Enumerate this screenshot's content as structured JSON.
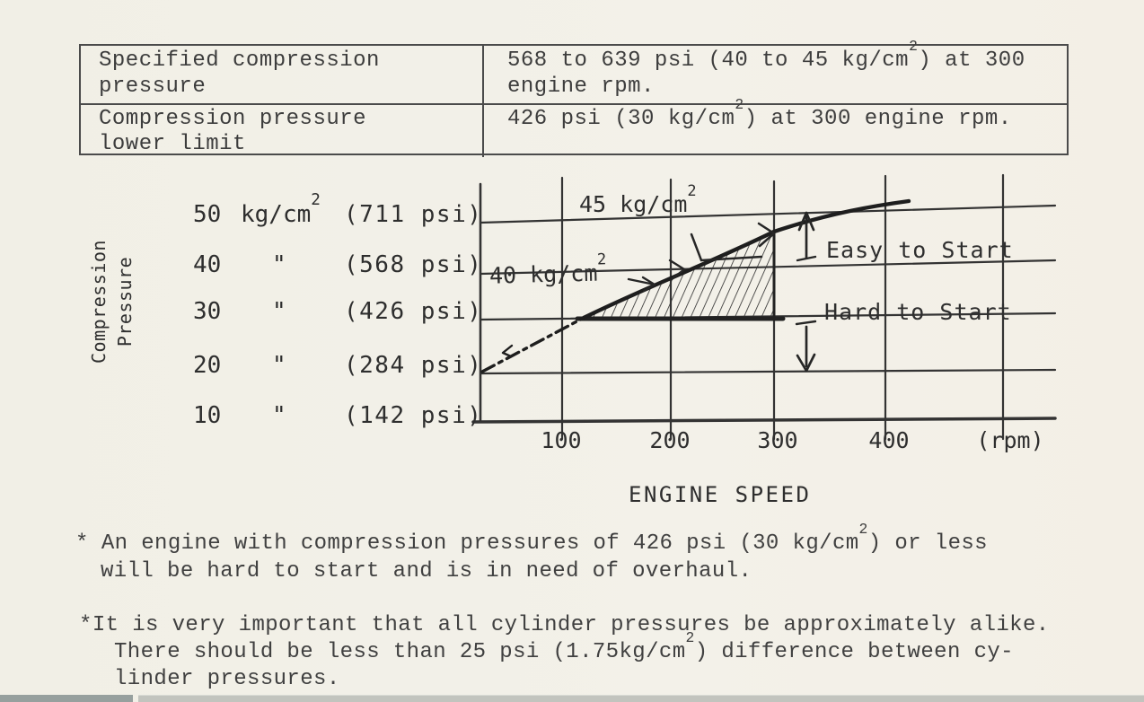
{
  "spec_table": {
    "rows": [
      {
        "label_lines": [
          "Specified compression",
          "pressure"
        ],
        "value_lines": [
          "568 to 639 psi (40 to 45 kg/cm²) at 300",
          "engine rpm."
        ]
      },
      {
        "label_lines": [
          "Compression pressure",
          "lower limit"
        ],
        "value_lines": [
          "426 psi (30 kg/cm²) at 300 engine rpm."
        ]
      }
    ]
  },
  "chart": {
    "y_axis_title_lines": [
      "Compression",
      "Pressure"
    ],
    "y_labels": [
      {
        "value": "50",
        "unit": "kg/cm²",
        "psi": "(711 psi)"
      },
      {
        "value": "40",
        "unit": "\"",
        "psi": "(568 psi)"
      },
      {
        "value": "30",
        "unit": "\"",
        "psi": "(426 psi)"
      },
      {
        "value": "20",
        "unit": "\"",
        "psi": "(284 psi)"
      },
      {
        "value": "10",
        "unit": "\"",
        "psi": "(142 psi)"
      }
    ],
    "x_ticks": [
      "100",
      "200",
      "300",
      "400"
    ],
    "x_unit": "(rpm)",
    "x_axis_title": "ENGINE SPEED",
    "annotations": {
      "upper_curve_label": "45 kg/cm²",
      "lower_curve_label": "40 kg/cm²",
      "easy": "Easy to Start",
      "hard": "Hard to Start"
    }
  },
  "chart_data": {
    "type": "line",
    "title": "",
    "xlabel": "ENGINE SPEED",
    "x_unit": "rpm",
    "ylabel": "Compression Pressure",
    "y_unit": "kg/cm²",
    "x_ticks": [
      100,
      200,
      300,
      400
    ],
    "y_ticks_kg_cm2": [
      10,
      20,
      30,
      40,
      50
    ],
    "y_ticks_psi": [
      142,
      284,
      426,
      568,
      711
    ],
    "xlim": [
      0,
      500
    ],
    "ylim": [
      10,
      52
    ],
    "grid": true,
    "series": [
      {
        "name": "compression pressure vs engine speed",
        "x": [
          0,
          60,
          120,
          200,
          250,
          300,
          350,
          420
        ],
        "y": [
          20.5,
          26,
          30,
          38.5,
          42.5,
          45,
          48,
          50.3
        ],
        "style": "hand-drawn; dash-dot below 30 kg/cm², solid above"
      }
    ],
    "annotations": [
      {
        "text": "45 kg/cm²",
        "points_to_xy": [
          300,
          45
        ]
      },
      {
        "text": "40 kg/cm²",
        "points_to_xy": [
          210,
          40
        ]
      },
      {
        "text": "Easy to Start",
        "region": "above 40 kg/cm² line at 300 rpm"
      },
      {
        "text": "Hard to Start",
        "region": "below 30 kg/cm² line at 300 rpm"
      }
    ],
    "shaded_region": "hatched area between curve and 30 kg/cm² line from ~120 rpm to 300 rpm"
  },
  "footnotes": [
    {
      "marker": "*",
      "lines": [
        "An engine with compression pressures of 426 psi (30 kg/cm²) or less",
        "will be hard to start and is in need of overhaul."
      ]
    },
    {
      "marker": "*",
      "lines": [
        "It is very important that all cylinder pressures be approximately alike.",
        "There should be less than 25 psi (1.75kg/cm²) difference between cy-",
        "linder pressures."
      ]
    }
  ]
}
